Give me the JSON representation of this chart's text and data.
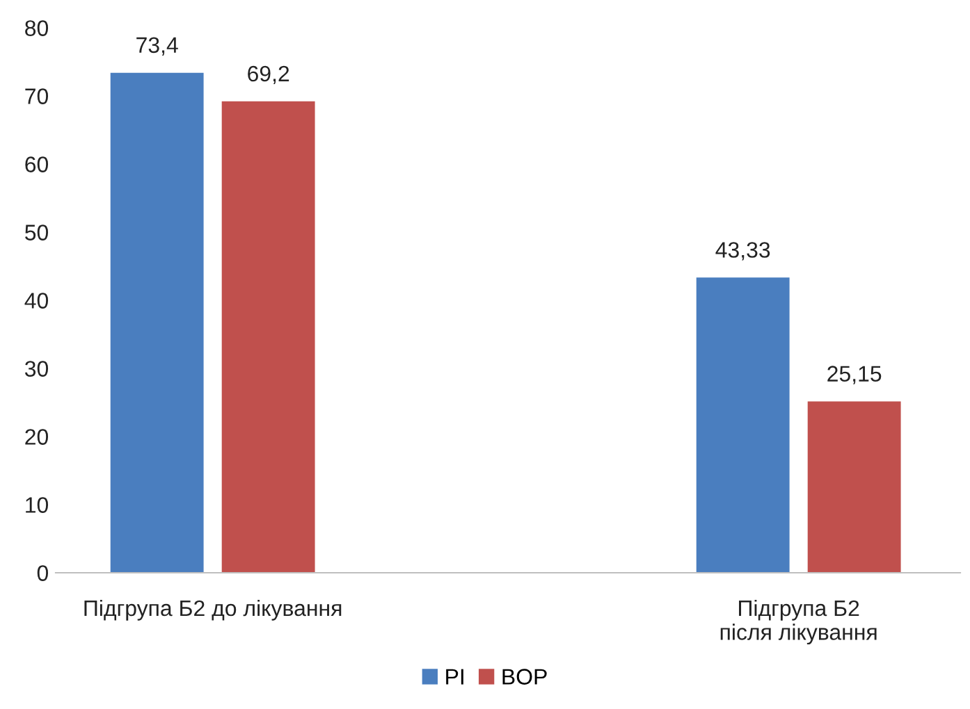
{
  "chart_data": {
    "type": "bar",
    "categories": [
      "Підгрупа Б2 до лікування",
      "Підгрупа Б2\nпісля лікування"
    ],
    "series": [
      {
        "name": "PI",
        "color": "#4a7ebf",
        "values": [
          73.4,
          43.33
        ],
        "value_labels": [
          "73,4",
          "43,33"
        ]
      },
      {
        "name": "BOP",
        "color": "#c0504d",
        "values": [
          69.2,
          25.15
        ],
        "value_labels": [
          "69,2",
          "25,15"
        ]
      }
    ],
    "ylim": [
      0,
      80
    ],
    "yticks": [
      0,
      10,
      20,
      30,
      40,
      50,
      60,
      70,
      80
    ],
    "grid": false,
    "legend": "bottom"
  }
}
